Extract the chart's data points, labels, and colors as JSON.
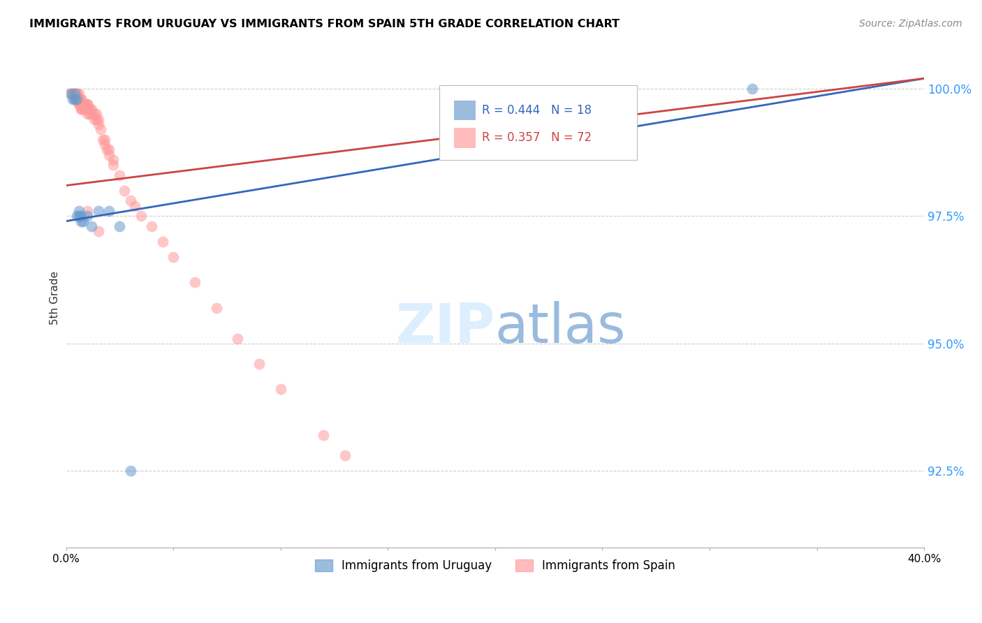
{
  "title": "IMMIGRANTS FROM URUGUAY VS IMMIGRANTS FROM SPAIN 5TH GRADE CORRELATION CHART",
  "source": "Source: ZipAtlas.com",
  "ylabel": "5th Grade",
  "ytick_labels": [
    "92.5%",
    "95.0%",
    "97.5%",
    "100.0%"
  ],
  "ytick_values": [
    0.925,
    0.95,
    0.975,
    1.0
  ],
  "xmin": 0.0,
  "xmax": 0.4,
  "ymin": 0.91,
  "ymax": 1.008,
  "legend_uruguay": "Immigrants from Uruguay",
  "legend_spain": "Immigrants from Spain",
  "R_uruguay": 0.444,
  "N_uruguay": 18,
  "R_spain": 0.357,
  "N_spain": 72,
  "color_uruguay": "#6699cc",
  "color_spain": "#ff9999",
  "color_line_uruguay": "#3366bb",
  "color_line_spain": "#cc4444",
  "watermark_color_zip": "#ddeeff",
  "watermark_color_atlas": "#99bbdd",
  "trend_uruguay_x0": 0.0,
  "trend_uruguay_x1": 0.4,
  "trend_uruguay_y0": 0.974,
  "trend_uruguay_y1": 1.002,
  "trend_spain_x0": 0.0,
  "trend_spain_x1": 0.4,
  "trend_spain_y0": 0.981,
  "trend_spain_y1": 1.002,
  "scatter_uruguay_x": [
    0.002,
    0.003,
    0.004,
    0.004,
    0.005,
    0.005,
    0.006,
    0.006,
    0.007,
    0.007,
    0.008,
    0.01,
    0.012,
    0.015,
    0.02,
    0.025,
    0.03,
    0.32
  ],
  "scatter_uruguay_y": [
    0.999,
    0.998,
    0.999,
    0.998,
    0.998,
    0.975,
    0.976,
    0.975,
    0.975,
    0.974,
    0.974,
    0.975,
    0.973,
    0.976,
    0.976,
    0.973,
    0.925,
    1.0
  ],
  "scatter_spain_x": [
    0.002,
    0.003,
    0.003,
    0.003,
    0.004,
    0.004,
    0.004,
    0.005,
    0.005,
    0.005,
    0.005,
    0.005,
    0.006,
    0.006,
    0.006,
    0.006,
    0.006,
    0.007,
    0.007,
    0.007,
    0.007,
    0.007,
    0.007,
    0.008,
    0.008,
    0.008,
    0.009,
    0.009,
    0.009,
    0.009,
    0.01,
    0.01,
    0.01,
    0.01,
    0.01,
    0.011,
    0.011,
    0.011,
    0.012,
    0.012,
    0.013,
    0.013,
    0.014,
    0.014,
    0.015,
    0.015,
    0.016,
    0.017,
    0.018,
    0.018,
    0.019,
    0.02,
    0.02,
    0.022,
    0.022,
    0.025,
    0.027,
    0.03,
    0.032,
    0.035,
    0.04,
    0.045,
    0.05,
    0.06,
    0.07,
    0.08,
    0.09,
    0.1,
    0.12,
    0.13,
    0.01,
    0.015
  ],
  "scatter_spain_y": [
    0.999,
    0.999,
    0.999,
    0.999,
    0.999,
    0.999,
    0.998,
    0.999,
    0.999,
    0.998,
    0.998,
    0.998,
    0.999,
    0.998,
    0.998,
    0.997,
    0.997,
    0.998,
    0.998,
    0.997,
    0.997,
    0.996,
    0.996,
    0.997,
    0.997,
    0.996,
    0.997,
    0.997,
    0.996,
    0.996,
    0.997,
    0.997,
    0.996,
    0.996,
    0.995,
    0.996,
    0.996,
    0.995,
    0.996,
    0.995,
    0.995,
    0.994,
    0.995,
    0.994,
    0.994,
    0.993,
    0.992,
    0.99,
    0.99,
    0.989,
    0.988,
    0.988,
    0.987,
    0.986,
    0.985,
    0.983,
    0.98,
    0.978,
    0.977,
    0.975,
    0.973,
    0.97,
    0.967,
    0.962,
    0.957,
    0.951,
    0.946,
    0.941,
    0.932,
    0.928,
    0.976,
    0.972
  ]
}
